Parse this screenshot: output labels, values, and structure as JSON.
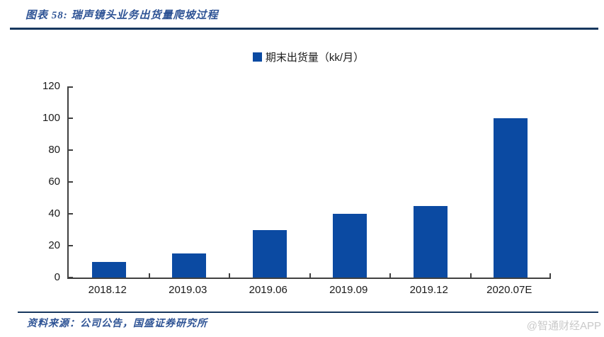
{
  "figure": {
    "title": "图表 58:  瑞声镜头业务出货量爬坡过程"
  },
  "legend": {
    "label": "期末出货量（kk/月）"
  },
  "chart_data": {
    "type": "bar",
    "title": "瑞声镜头业务出货量爬坡过程",
    "series_name": "期末出货量（kk/月）",
    "categories": [
      "2018.12",
      "2019.03",
      "2019.06",
      "2019.09",
      "2019.12",
      "2020.07E"
    ],
    "values": [
      10,
      15,
      30,
      40,
      45,
      100
    ],
    "xlabel": "",
    "ylabel": "",
    "ylim": [
      0,
      120
    ],
    "yticks": [
      0,
      20,
      40,
      60,
      80,
      100,
      120
    ],
    "grid": false,
    "legend_position": "top",
    "bar_color": "#0B4AA2",
    "axis_color": "#404040"
  },
  "footer": {
    "source": "资料来源：公司公告，国盛证券研究所",
    "watermark": "@智通财经APP"
  }
}
